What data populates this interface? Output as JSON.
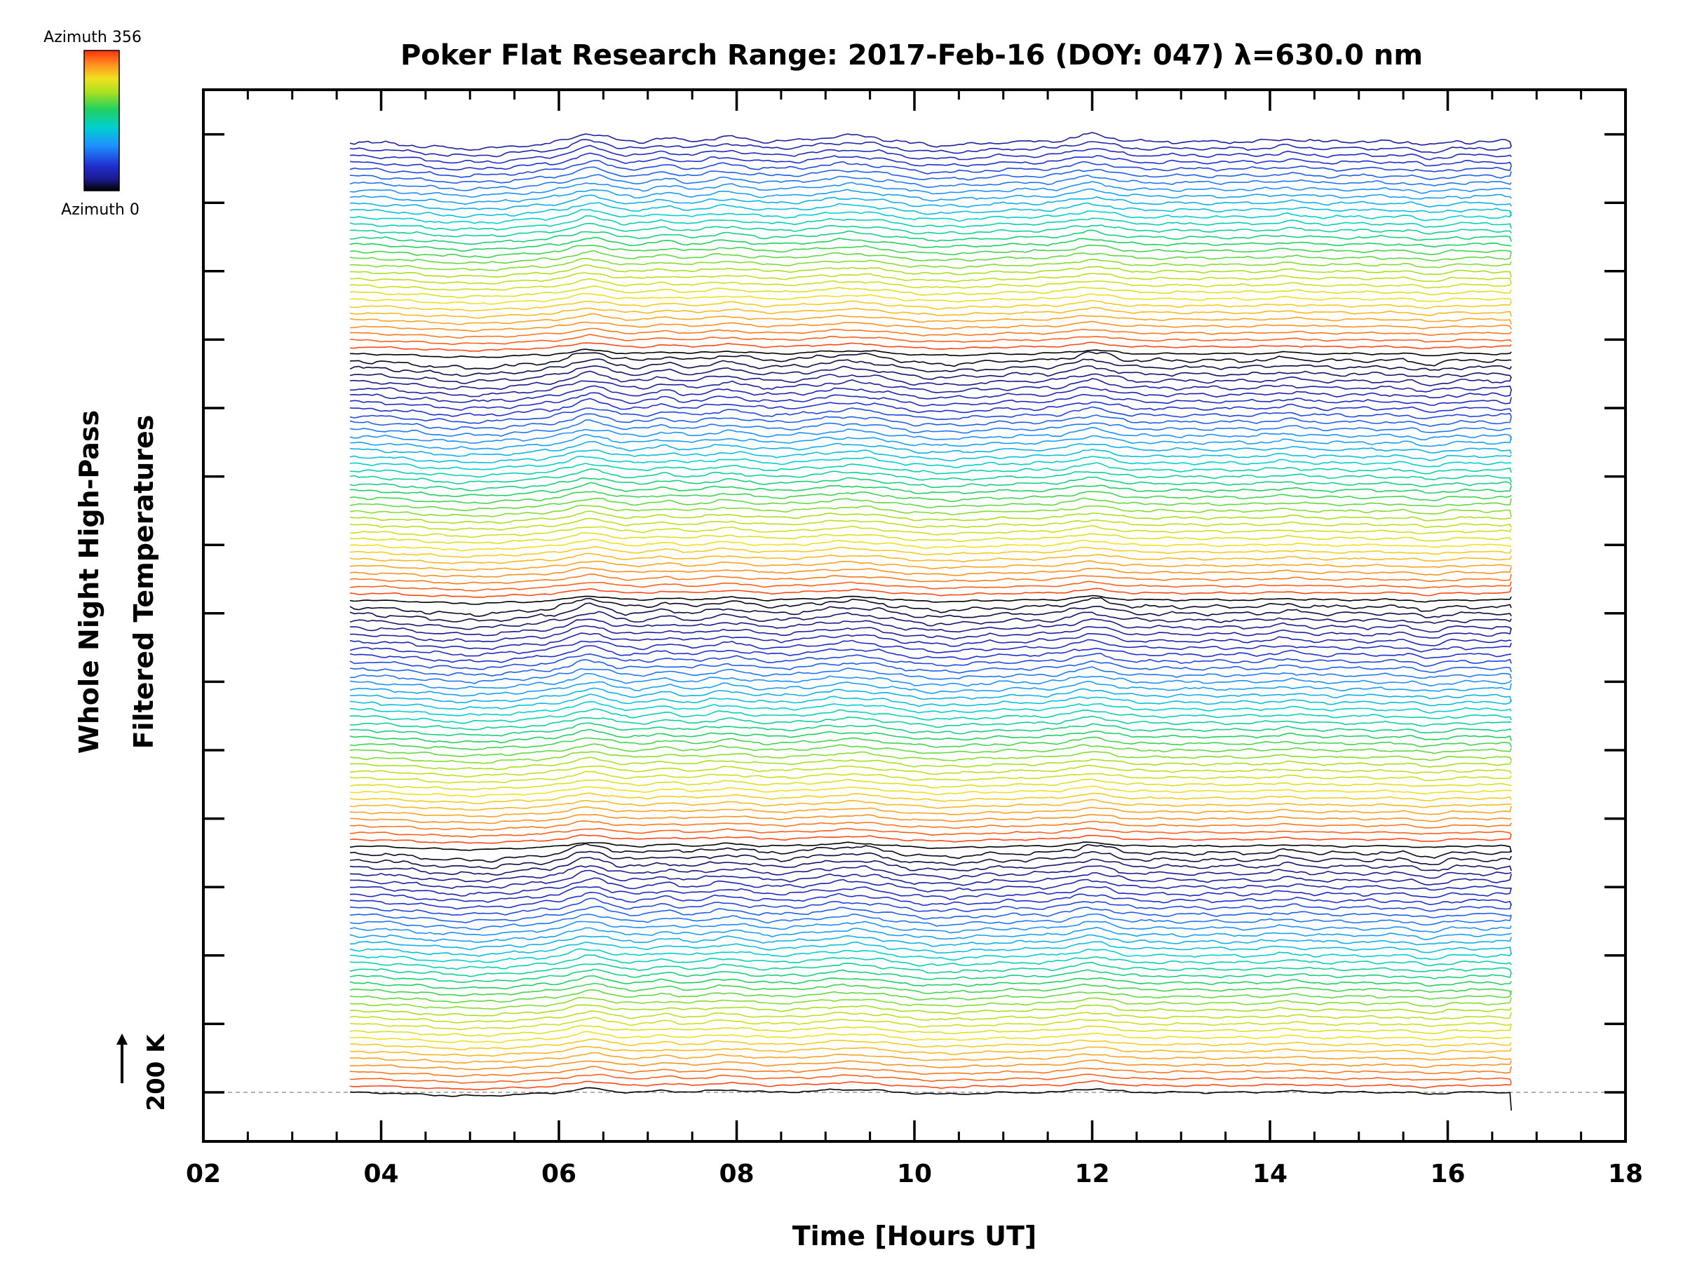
{
  "chart_data": {
    "type": "line",
    "title": "Poker Flat Research Range: 2017-Feb-16 (DOY: 047) λ=630.0 nm",
    "xlabel": "Time [Hours UT]",
    "ylabel_line1": "Whole Night High-Pass",
    "ylabel_line2": "Filtered Temperatures",
    "xlim": [
      2,
      18
    ],
    "x_tick_labels": [
      "02",
      "04",
      "06",
      "08",
      "10",
      "12",
      "14",
      "16",
      "18"
    ],
    "x_data_range": [
      3.65,
      16.7
    ],
    "grid": false,
    "scale_bar_label": "200 K",
    "colorbar": {
      "top_label": "Azimuth 356",
      "bottom_label": "Azimuth 0",
      "colormap": "rainbow",
      "colors": [
        "#000000",
        "#1a1a8c",
        "#2030d0",
        "#1e90ff",
        "#00d0d0",
        "#20d060",
        "#a8e020",
        "#f0e020",
        "#ff9020",
        "#ff3010"
      ]
    },
    "series_count": 140,
    "series_description": "Stacked high-pass filtered temperature traces, one per azimuth, color-coded by azimuth from 0 (black/blue) to 356 (red); baseline trace at bottom aligned to dashed reference line.",
    "common_features": [
      {
        "x": 6.4,
        "type": "peak"
      },
      {
        "x": 7.9,
        "type": "bump"
      },
      {
        "x": 9.3,
        "type": "broad peak"
      },
      {
        "x": 12.0,
        "type": "peak"
      },
      {
        "x": 15.8,
        "type": "small dip"
      }
    ]
  }
}
